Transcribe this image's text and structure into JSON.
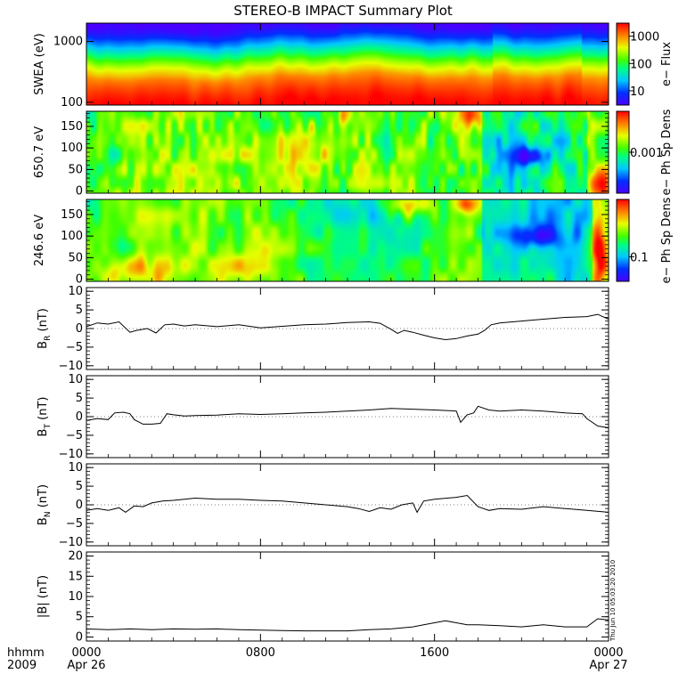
{
  "title": "STEREO-B IMPACT Summary Plot",
  "stamp": "Thu Jun 10 05:03:20 2010",
  "x_axis": {
    "row_label": "hhmm",
    "year_label": "2009",
    "ticks": [
      {
        "hour": 0,
        "label": "0000",
        "date": "Apr 26"
      },
      {
        "hour": 8,
        "label": "0800",
        "date": ""
      },
      {
        "hour": 16,
        "label": "1600",
        "date": ""
      },
      {
        "hour": 24,
        "label": "0000",
        "date": "Apr 27"
      }
    ]
  },
  "chart_data": [
    {
      "type": "heatmap",
      "ylabel": "SWEA (eV)",
      "y_scale": "log",
      "ylim": [
        90,
        2000
      ],
      "y_ticks": [
        {
          "value": 100,
          "label": "100"
        },
        {
          "value": 1000,
          "label": "1000"
        }
      ],
      "colorbar_label": "e− Flux",
      "colorbar_scale": "log",
      "colorbar_range": [
        3,
        3000
      ],
      "colorbar_ticks": [
        {
          "value": 10,
          "label": "10"
        },
        {
          "value": 100,
          "label": "100"
        },
        {
          "value": 1000,
          "label": "1000"
        }
      ],
      "energy_profile": {
        "energy_eV": [
          90,
          110,
          150,
          200,
          250,
          300,
          400,
          500,
          600,
          700,
          800,
          1000,
          1300,
          1600,
          2000
        ],
        "flux": [
          3000,
          2700,
          2000,
          1400,
          1000,
          600,
          300,
          150,
          80,
          50,
          30,
          15,
          7,
          4,
          3
        ]
      }
    },
    {
      "type": "heatmap",
      "ylabel": "650.7 eV",
      "ylim": [
        -5,
        185
      ],
      "y_ticks": [
        {
          "value": 0,
          "label": "0"
        },
        {
          "value": 50,
          "label": "50"
        },
        {
          "value": 100,
          "label": "100"
        },
        {
          "value": 150,
          "label": "150"
        }
      ],
      "colorbar_label": "e− Ph Sp Dens",
      "colorbar_ticks": [
        {
          "value": 0.5,
          "label": "0.001"
        }
      ]
    },
    {
      "type": "heatmap",
      "ylabel": "246.6 eV",
      "ylim": [
        -5,
        185
      ],
      "y_ticks": [
        {
          "value": 0,
          "label": "0"
        },
        {
          "value": 50,
          "label": "50"
        },
        {
          "value": 100,
          "label": "100"
        },
        {
          "value": 150,
          "label": "150"
        }
      ],
      "colorbar_label": "e− Ph Sp Dens",
      "colorbar_ticks": [
        {
          "value": 0.3,
          "label": "0.1"
        }
      ]
    },
    {
      "type": "line",
      "ylabel": "B",
      "ylabel_sub": "R",
      "ylabel_unit": " (nT)",
      "ylim": [
        -11,
        11
      ],
      "y_ticks": [
        {
          "value": -10,
          "label": "−10"
        },
        {
          "value": -5,
          "label": "−5"
        },
        {
          "value": 0,
          "label": "0"
        },
        {
          "value": 5,
          "label": "5"
        },
        {
          "value": 10,
          "label": "10"
        }
      ],
      "x_hours": [
        0,
        0.5,
        1,
        1.5,
        2,
        2.3,
        2.8,
        3.2,
        3.6,
        4,
        4.5,
        5,
        6,
        7,
        8,
        9,
        10,
        11,
        12,
        13,
        13.5,
        14,
        14.3,
        14.6,
        15,
        15.5,
        16,
        16.5,
        17,
        17.5,
        18,
        18.3,
        18.6,
        19,
        20,
        21,
        22,
        23,
        23.5,
        24
      ],
      "values": [
        0.5,
        1.5,
        1.2,
        1.8,
        -1.0,
        -0.5,
        0.0,
        -1.2,
        1.0,
        1.2,
        0.7,
        1.0,
        0.5,
        1.0,
        0.2,
        0.6,
        1.0,
        1.2,
        1.6,
        1.8,
        1.4,
        -0.2,
        -1.3,
        -0.5,
        -1.0,
        -1.8,
        -2.5,
        -3.0,
        -2.7,
        -2.0,
        -1.5,
        -0.5,
        1.0,
        1.5,
        2.0,
        2.5,
        3.0,
        3.2,
        3.8,
        2.5
      ]
    },
    {
      "type": "line",
      "ylabel": "B",
      "ylabel_sub": "T",
      "ylabel_unit": " (nT)",
      "ylim": [
        -11,
        11
      ],
      "y_ticks": [
        {
          "value": -10,
          "label": "−10"
        },
        {
          "value": -5,
          "label": "−5"
        },
        {
          "value": 0,
          "label": "0"
        },
        {
          "value": 5,
          "label": "5"
        },
        {
          "value": 10,
          "label": "10"
        }
      ],
      "x_hours": [
        0,
        0.5,
        1,
        1.3,
        1.7,
        2,
        2.2,
        2.6,
        3,
        3.4,
        3.7,
        4,
        4.5,
        5,
        6,
        7,
        8,
        9,
        10,
        11,
        12,
        13,
        14,
        15,
        16,
        17,
        17.2,
        17.5,
        17.8,
        18,
        18.5,
        19,
        20,
        21,
        22,
        22.8,
        23,
        23.5,
        24
      ],
      "values": [
        -1.0,
        -0.5,
        -0.8,
        1.0,
        1.2,
        0.8,
        -0.8,
        -2.0,
        -2.0,
        -1.8,
        0.8,
        0.5,
        0.2,
        0.3,
        0.4,
        0.8,
        0.6,
        0.8,
        1.0,
        1.2,
        1.5,
        1.8,
        2.2,
        2.0,
        1.8,
        1.5,
        -1.5,
        0.5,
        1.0,
        2.8,
        1.8,
        1.5,
        1.8,
        1.5,
        1.0,
        0.8,
        -0.5,
        -2.5,
        -3.0
      ]
    },
    {
      "type": "line",
      "ylabel": "B",
      "ylabel_sub": "N",
      "ylabel_unit": " (nT)",
      "ylim": [
        -11,
        11
      ],
      "y_ticks": [
        {
          "value": -10,
          "label": "−10"
        },
        {
          "value": -5,
          "label": "−5"
        },
        {
          "value": 0,
          "label": "0"
        },
        {
          "value": 5,
          "label": "5"
        },
        {
          "value": 10,
          "label": "10"
        }
      ],
      "x_hours": [
        0,
        0.5,
        1,
        1.5,
        1.8,
        2.2,
        2.6,
        3,
        3.5,
        4,
        5,
        6,
        7,
        8,
        9,
        10,
        11,
        12,
        12.5,
        13,
        13.5,
        14,
        14.5,
        15,
        15.2,
        15.5,
        16,
        17,
        17.5,
        18,
        18.5,
        19,
        20,
        21,
        22,
        23,
        24
      ],
      "values": [
        -1.5,
        -1.0,
        -1.5,
        -0.8,
        -2.0,
        -0.3,
        -0.5,
        0.5,
        1.0,
        1.2,
        1.8,
        1.5,
        1.5,
        1.2,
        1.0,
        0.5,
        0.0,
        -0.5,
        -1.0,
        -1.8,
        -0.8,
        -1.2,
        0.0,
        0.5,
        -2.0,
        1.0,
        1.5,
        2.0,
        2.5,
        -0.5,
        -1.5,
        -1.0,
        -1.2,
        -0.5,
        -1.0,
        -1.5,
        -2.0
      ]
    },
    {
      "type": "line",
      "ylabel": "|B| (nT)",
      "ylim": [
        -1,
        21
      ],
      "y_ticks": [
        {
          "value": 0,
          "label": "0"
        },
        {
          "value": 5,
          "label": "5"
        },
        {
          "value": 10,
          "label": "10"
        },
        {
          "value": 15,
          "label": "15"
        },
        {
          "value": 20,
          "label": "20"
        }
      ],
      "x_hours": [
        0,
        1,
        2,
        3,
        4,
        5,
        6,
        7,
        8,
        9,
        10,
        11,
        12,
        13,
        14,
        15,
        15.5,
        16,
        16.5,
        17,
        17.5,
        18,
        19,
        20,
        21,
        22,
        23,
        23.5,
        24
      ],
      "values": [
        2.0,
        1.8,
        2.0,
        1.8,
        2.0,
        1.9,
        2.0,
        1.8,
        1.7,
        1.6,
        1.5,
        1.5,
        1.5,
        1.8,
        2.0,
        2.5,
        3.0,
        3.5,
        4.0,
        3.5,
        3.0,
        3.0,
        2.8,
        2.5,
        3.0,
        2.5,
        2.5,
        4.5,
        4.2
      ]
    }
  ]
}
